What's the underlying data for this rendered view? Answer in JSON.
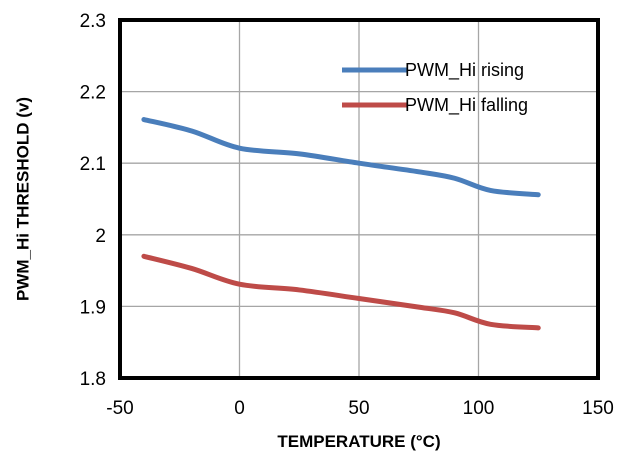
{
  "chart_data": {
    "type": "line",
    "xlabel": "TEMPERATURE  (°C)",
    "ylabel": "PWM_Hi THRESHOLD  (v)",
    "xlim": [
      -50,
      150
    ],
    "ylim": [
      1.8,
      2.3
    ],
    "xticks": [
      -50,
      0,
      50,
      100,
      150
    ],
    "yticks": [
      1.8,
      1.9,
      2.0,
      2.1,
      2.2,
      2.3
    ],
    "xtick_labels": [
      "-50",
      "0",
      "50",
      "100",
      "150"
    ],
    "ytick_labels": [
      "1.8",
      "1.9",
      "2",
      "2.1",
      "2.2",
      "2.3"
    ],
    "grid": true,
    "legend_position": "top-right",
    "series": [
      {
        "name": "PWM_Hi rising",
        "color": "#4a7ebb",
        "x": [
          -40,
          -20,
          0,
          25,
          50,
          75,
          90,
          105,
          125
        ],
        "y": [
          2.161,
          2.145,
          2.121,
          2.113,
          2.1,
          2.088,
          2.079,
          2.062,
          2.056
        ]
      },
      {
        "name": "PWM_Hi falling",
        "color": "#be4b48",
        "x": [
          -40,
          -20,
          0,
          25,
          50,
          75,
          90,
          105,
          125
        ],
        "y": [
          1.97,
          1.953,
          1.931,
          1.923,
          1.911,
          1.899,
          1.891,
          1.875,
          1.87
        ]
      }
    ]
  }
}
